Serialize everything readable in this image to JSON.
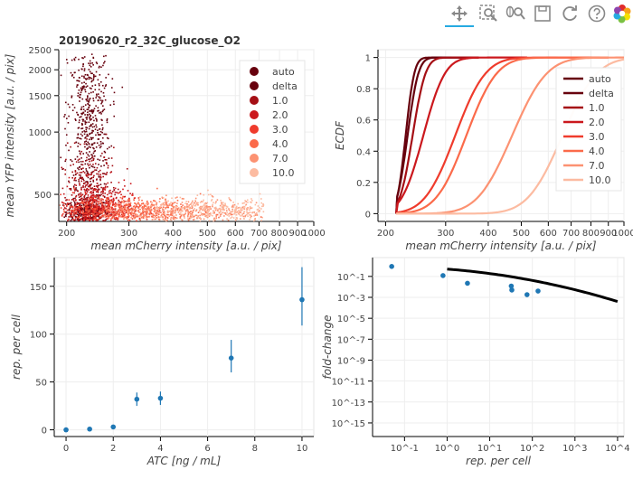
{
  "toolbar": {
    "tools": [
      {
        "name": "pan-tool",
        "icon": "pan-icon",
        "active": true
      },
      {
        "name": "box-zoom-tool",
        "icon": "box-zoom-icon",
        "active": false
      },
      {
        "name": "wheel-zoom-tool",
        "icon": "wheel-zoom-icon",
        "active": false
      },
      {
        "name": "save-tool",
        "icon": "save-icon",
        "active": false
      },
      {
        "name": "reset-tool",
        "icon": "reset-icon",
        "active": false
      },
      {
        "name": "help-tool",
        "icon": "help-icon",
        "active": false
      },
      {
        "name": "bokeh-logo",
        "icon": "bokeh-logo-icon",
        "active": false
      }
    ],
    "active_color": "#26aae1"
  },
  "chart_data": [
    {
      "id": "scatter",
      "type": "scatter",
      "title": "20190620_r2_32C_glucose_O2",
      "xlabel": "mean mCherry intensity [a.u. / pix]",
      "ylabel": "mean YFP intensity [a.u. / pix]",
      "xscale": "log",
      "yscale": "log",
      "xlim": [
        190,
        1000
      ],
      "ylim": [
        370,
        2500
      ],
      "xticks": [
        {
          "v": 200,
          "label": "200"
        },
        {
          "v": 300,
          "label": "300"
        },
        {
          "v": 400,
          "label": "400"
        },
        {
          "v": 500,
          "label": "500"
        },
        {
          "v": 600,
          "label": "600"
        },
        {
          "v": 700,
          "label": "700"
        },
        {
          "v": 800,
          "label": "800"
        },
        {
          "v": 900,
          "label": "900"
        },
        {
          "v": 1000,
          "label": "1000"
        }
      ],
      "yticks": [
        {
          "v": 500,
          "label": "500"
        },
        {
          "v": 1000,
          "label": "1000"
        },
        {
          "v": 1500,
          "label": "1500"
        },
        {
          "v": 2000,
          "label": "2000"
        },
        {
          "v": 2500,
          "label": "2500"
        }
      ],
      "legend_position": "top-right",
      "series": [
        {
          "name": "auto",
          "color": "#67000d",
          "x_center": 228,
          "y_center": 415,
          "x_spread": 0.03,
          "y_spread": 0.03
        },
        {
          "name": "delta",
          "color": "#67000d",
          "x_center": 230,
          "y_center": 1150,
          "x_spread": 0.03,
          "y_spread": 0.2
        },
        {
          "name": "1.0",
          "color": "#a50f15",
          "x_center": 232,
          "y_center": 480,
          "x_spread": 0.04,
          "y_spread": 0.12
        },
        {
          "name": "2.0",
          "color": "#cb181d",
          "x_center": 240,
          "y_center": 430,
          "x_spread": 0.05,
          "y_spread": 0.06
        },
        {
          "name": "3.0",
          "color": "#ef3b2c",
          "x_center": 260,
          "y_center": 420,
          "x_spread": 0.07,
          "y_spread": 0.04
        },
        {
          "name": "4.0",
          "color": "#fb6a4a",
          "x_center": 330,
          "y_center": 420,
          "x_spread": 0.1,
          "y_spread": 0.03
        },
        {
          "name": "7.0",
          "color": "#fc9272",
          "x_center": 430,
          "y_center": 420,
          "x_spread": 0.12,
          "y_spread": 0.03
        },
        {
          "name": "10.0",
          "color": "#fcbba1",
          "x_center": 560,
          "y_center": 420,
          "x_spread": 0.12,
          "y_spread": 0.03
        }
      ]
    },
    {
      "id": "ecdf",
      "type": "line",
      "title": "",
      "xlabel": "mean mCherry intensity [a.u. / pix]",
      "ylabel": "ECDF",
      "xscale": "log",
      "yscale": "linear",
      "xlim": [
        190,
        1000
      ],
      "ylim": [
        -0.05,
        1.05
      ],
      "xticks": [
        {
          "v": 200,
          "label": "200"
        },
        {
          "v": 300,
          "label": "300"
        },
        {
          "v": 400,
          "label": "400"
        },
        {
          "v": 500,
          "label": "500"
        },
        {
          "v": 600,
          "label": "600"
        },
        {
          "v": 700,
          "label": "700"
        },
        {
          "v": 800,
          "label": "800"
        },
        {
          "v": 900,
          "label": "900"
        },
        {
          "v": 1000,
          "label": "1000"
        }
      ],
      "yticks": [
        {
          "v": 0,
          "label": "0"
        },
        {
          "v": 0.2,
          "label": "0.2"
        },
        {
          "v": 0.4,
          "label": "0.4"
        },
        {
          "v": 0.6,
          "label": "0.6"
        },
        {
          "v": 0.8,
          "label": "0.8"
        },
        {
          "v": 1,
          "label": "1"
        }
      ],
      "legend_position": "right",
      "series": [
        {
          "name": "auto",
          "color": "#67000d",
          "median": 229,
          "spread": 0.02,
          "xmin": 215,
          "xmax": 375
        },
        {
          "name": "delta",
          "color": "#67000d",
          "median": 232,
          "spread": 0.025,
          "xmin": 215,
          "xmax": 375
        },
        {
          "name": "1.0",
          "color": "#a50f15",
          "median": 240,
          "spread": 0.03,
          "xmin": 215,
          "xmax": 375
        },
        {
          "name": "2.0",
          "color": "#cb181d",
          "median": 258,
          "spread": 0.05,
          "xmin": 215,
          "xmax": 520
        },
        {
          "name": "3.0",
          "color": "#ef3b2c",
          "median": 320,
          "spread": 0.07,
          "xmin": 215,
          "xmax": 900
        },
        {
          "name": "4.0",
          "color": "#fb6a4a",
          "median": 345,
          "spread": 0.07,
          "xmin": 215,
          "xmax": 900
        },
        {
          "name": "7.0",
          "color": "#fc9272",
          "median": 470,
          "spread": 0.08,
          "xmin": 215,
          "xmax": 1000
        },
        {
          "name": "10.0",
          "color": "#fcbba1",
          "median": 660,
          "spread": 0.08,
          "xmin": 215,
          "xmax": 1000
        }
      ]
    },
    {
      "id": "rep-atc",
      "type": "scatter",
      "title": "",
      "xlabel": "ATC [ng / mL]",
      "ylabel": "rep. per cell",
      "xscale": "linear",
      "yscale": "linear",
      "xlim": [
        -0.5,
        10.5
      ],
      "ylim": [
        -7,
        180
      ],
      "xticks": [
        {
          "v": 0,
          "label": "0"
        },
        {
          "v": 2,
          "label": "2"
        },
        {
          "v": 4,
          "label": "4"
        },
        {
          "v": 6,
          "label": "6"
        },
        {
          "v": 8,
          "label": "8"
        },
        {
          "v": 10,
          "label": "10"
        }
      ],
      "yticks": [
        {
          "v": 0,
          "label": "0"
        },
        {
          "v": 50,
          "label": "50"
        },
        {
          "v": 100,
          "label": "100"
        },
        {
          "v": 150,
          "label": "150"
        }
      ],
      "color": "#1f77b4",
      "points": [
        {
          "x": 0,
          "y": 0,
          "lo": 0,
          "hi": 0
        },
        {
          "x": 1,
          "y": 0.8,
          "lo": 0.5,
          "hi": 1.2
        },
        {
          "x": 2,
          "y": 3,
          "lo": 2,
          "hi": 4
        },
        {
          "x": 3,
          "y": 32,
          "lo": 25,
          "hi": 39
        },
        {
          "x": 4,
          "y": 33,
          "lo": 26,
          "hi": 40
        },
        {
          "x": 7,
          "y": 75,
          "lo": 60,
          "hi": 94
        },
        {
          "x": 10,
          "y": 136,
          "lo": 109,
          "hi": 170
        }
      ]
    },
    {
      "id": "fold-change",
      "type": "scatter",
      "title": "",
      "xlabel": "rep. per cell",
      "ylabel": "fold-change",
      "xscale": "log",
      "yscale": "log",
      "xlim_exp": [
        -1.75,
        4.15
      ],
      "ylim_exp": [
        -16.3,
        0.8
      ],
      "xticks": [
        {
          "e": -1,
          "label": "10^-1"
        },
        {
          "e": 0,
          "label": "10^0"
        },
        {
          "e": 1,
          "label": "10^1"
        },
        {
          "e": 2,
          "label": "10^2"
        },
        {
          "e": 3,
          "label": "10^3"
        },
        {
          "e": 4,
          "label": "10^4"
        }
      ],
      "yticks": [
        {
          "e": -15,
          "label": "10^-15"
        },
        {
          "e": -13,
          "label": "10^-13"
        },
        {
          "e": -11,
          "label": "10^-11"
        },
        {
          "e": -9,
          "label": "10^-9"
        },
        {
          "e": -7,
          "label": "10^-7"
        },
        {
          "e": -5,
          "label": "10^-5"
        },
        {
          "e": -3,
          "label": "10^-3"
        },
        {
          "e": -1,
          "label": "10^-1"
        }
      ],
      "color": "#1f77b4",
      "points": [
        {
          "x": 0.05,
          "y": 0.9
        },
        {
          "x": 0.8,
          "y": 0.12
        },
        {
          "x": 3,
          "y": 0.022
        },
        {
          "x": 32,
          "y": 0.012
        },
        {
          "x": 33,
          "y": 0.005
        },
        {
          "x": 75,
          "y": 0.0018
        },
        {
          "x": 136,
          "y": 0.004
        }
      ],
      "theory": {
        "x_range": [
          1,
          10000
        ],
        "y_at_start": 0.5,
        "y_at_end": 0.0004,
        "color": "#000000"
      }
    }
  ]
}
